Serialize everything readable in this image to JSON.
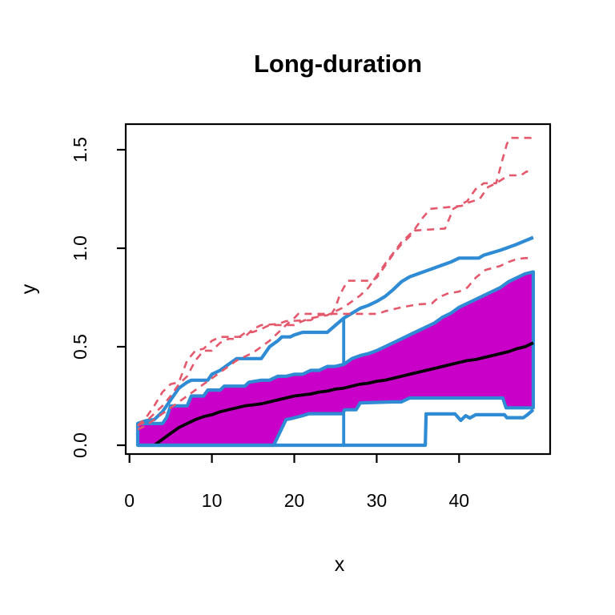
{
  "chart_data": {
    "type": "line",
    "title": "Long-duration",
    "xlabel": "x",
    "ylabel": "y",
    "x_ticks": [
      0,
      10,
      20,
      30,
      40
    ],
    "x_tick_labels": [
      "0",
      "10",
      "20",
      "30",
      "40"
    ],
    "y_ticks": [
      0,
      0.5,
      1.0,
      1.5
    ],
    "y_tick_labels": [
      "0.0",
      "0.5",
      "1.0",
      "1.5"
    ],
    "xlim": [
      -1,
      51
    ],
    "ylim": [
      -0.05,
      1.64
    ],
    "grid": false,
    "legend_position": "none",
    "plot_kind": "functional-boxplot",
    "colors": {
      "median": "#000000",
      "central_region_fill": "#C800C8",
      "envelope": "#2E8BD4",
      "outliers": "#E4586C",
      "box": "#000000"
    },
    "series": [
      {
        "name": "central-region-upper",
        "role": "band-upper",
        "color": "#2E8BD4",
        "style": "solid",
        "points": [
          [
            1,
            0.11
          ],
          [
            4,
            0.11
          ],
          [
            4.5,
            0.14
          ],
          [
            5,
            0.2
          ],
          [
            7,
            0.2
          ],
          [
            7.5,
            0.25
          ],
          [
            9,
            0.25
          ],
          [
            9.5,
            0.28
          ],
          [
            11,
            0.28
          ],
          [
            11.5,
            0.3
          ],
          [
            14,
            0.3
          ],
          [
            14.5,
            0.32
          ],
          [
            16,
            0.33
          ],
          [
            17,
            0.33
          ],
          [
            18,
            0.35
          ],
          [
            19,
            0.35
          ],
          [
            20,
            0.36
          ],
          [
            21,
            0.36
          ],
          [
            22,
            0.38
          ],
          [
            23,
            0.38
          ],
          [
            24,
            0.4
          ],
          [
            25,
            0.4
          ],
          [
            26,
            0.41
          ],
          [
            27,
            0.44
          ],
          [
            28,
            0.455
          ],
          [
            29,
            0.465
          ],
          [
            30,
            0.48
          ],
          [
            31,
            0.5
          ],
          [
            32,
            0.52
          ],
          [
            33,
            0.54
          ],
          [
            34,
            0.56
          ],
          [
            35,
            0.58
          ],
          [
            36,
            0.6
          ],
          [
            37,
            0.62
          ],
          [
            38,
            0.65
          ],
          [
            39,
            0.67
          ],
          [
            40,
            0.7
          ],
          [
            41,
            0.72
          ],
          [
            42,
            0.74
          ],
          [
            43,
            0.76
          ],
          [
            44,
            0.78
          ],
          [
            45,
            0.8
          ],
          [
            46,
            0.83
          ],
          [
            47,
            0.85
          ],
          [
            48,
            0.87
          ],
          [
            49,
            0.88
          ]
        ]
      },
      {
        "name": "central-region-lower",
        "role": "band-lower",
        "color": "#2E8BD4",
        "style": "solid",
        "points": [
          [
            1,
            0.0
          ],
          [
            17.5,
            0.0
          ],
          [
            19,
            0.13
          ],
          [
            19.5,
            0.134
          ],
          [
            21,
            0.15
          ],
          [
            21.8,
            0.16
          ],
          [
            25.9,
            0.16
          ],
          [
            26.1,
            0.18
          ],
          [
            27.5,
            0.18
          ],
          [
            28,
            0.215
          ],
          [
            32,
            0.22
          ],
          [
            33,
            0.22
          ],
          [
            34,
            0.24
          ],
          [
            45.3,
            0.24
          ],
          [
            45.7,
            0.19
          ],
          [
            49,
            0.19
          ]
        ]
      },
      {
        "name": "median",
        "role": "median",
        "color": "#000000",
        "style": "solid",
        "points": [
          [
            1,
            0.0
          ],
          [
            3,
            0.0
          ],
          [
            4,
            0.03
          ],
          [
            5,
            0.06
          ],
          [
            6,
            0.09
          ],
          [
            7,
            0.11
          ],
          [
            8,
            0.13
          ],
          [
            9,
            0.145
          ],
          [
            10,
            0.155
          ],
          [
            11,
            0.17
          ],
          [
            12,
            0.18
          ],
          [
            13,
            0.19
          ],
          [
            14,
            0.2
          ],
          [
            15,
            0.205
          ],
          [
            16,
            0.21
          ],
          [
            17,
            0.22
          ],
          [
            18,
            0.23
          ],
          [
            19,
            0.24
          ],
          [
            20,
            0.25
          ],
          [
            21,
            0.255
          ],
          [
            22,
            0.26
          ],
          [
            23,
            0.27
          ],
          [
            24,
            0.275
          ],
          [
            25,
            0.285
          ],
          [
            26,
            0.29
          ],
          [
            27,
            0.3
          ],
          [
            28,
            0.31
          ],
          [
            29,
            0.315
          ],
          [
            30,
            0.325
          ],
          [
            31,
            0.33
          ],
          [
            32,
            0.34
          ],
          [
            33,
            0.35
          ],
          [
            34,
            0.36
          ],
          [
            35,
            0.37
          ],
          [
            36,
            0.38
          ],
          [
            37,
            0.39
          ],
          [
            38,
            0.4
          ],
          [
            39,
            0.41
          ],
          [
            40,
            0.42
          ],
          [
            41,
            0.43
          ],
          [
            42,
            0.435
          ],
          [
            43,
            0.445
          ],
          [
            44,
            0.455
          ],
          [
            45,
            0.465
          ],
          [
            46,
            0.475
          ],
          [
            47,
            0.49
          ],
          [
            48,
            0.5
          ],
          [
            49,
            0.52
          ]
        ]
      },
      {
        "name": "envelope-max",
        "role": "envelope",
        "color": "#2E8BD4",
        "style": "solid",
        "points": [
          [
            1,
            0.11
          ],
          [
            2,
            0.125
          ],
          [
            3,
            0.13
          ],
          [
            4,
            0.17
          ],
          [
            5,
            0.23
          ],
          [
            6,
            0.29
          ],
          [
            7,
            0.32
          ],
          [
            7.5,
            0.33
          ],
          [
            9.5,
            0.33
          ],
          [
            10,
            0.36
          ],
          [
            11,
            0.38
          ],
          [
            12,
            0.41
          ],
          [
            13,
            0.44
          ],
          [
            16,
            0.44
          ],
          [
            17,
            0.5
          ],
          [
            18,
            0.53
          ],
          [
            18.5,
            0.55
          ],
          [
            19.5,
            0.55
          ],
          [
            20,
            0.56
          ],
          [
            21,
            0.573
          ],
          [
            24,
            0.573
          ],
          [
            26,
            0.645
          ],
          [
            27,
            0.67
          ],
          [
            28,
            0.695
          ],
          [
            29,
            0.71
          ],
          [
            30,
            0.73
          ],
          [
            31,
            0.755
          ],
          [
            32,
            0.79
          ],
          [
            33,
            0.83
          ],
          [
            34,
            0.855
          ],
          [
            35,
            0.87
          ],
          [
            36,
            0.885
          ],
          [
            37,
            0.9
          ],
          [
            38,
            0.915
          ],
          [
            39,
            0.93
          ],
          [
            40,
            0.95
          ],
          [
            42.4,
            0.95
          ],
          [
            43,
            0.965
          ],
          [
            45,
            0.99
          ],
          [
            47,
            1.02
          ],
          [
            49,
            1.055
          ]
        ]
      },
      {
        "name": "envelope-min",
        "role": "envelope",
        "color": "#2E8BD4",
        "style": "solid",
        "points": [
          [
            1,
            0.0
          ],
          [
            35.9,
            0.0
          ],
          [
            36,
            0.159
          ],
          [
            39.5,
            0.159
          ],
          [
            40.2,
            0.126
          ],
          [
            40.8,
            0.15
          ],
          [
            41.3,
            0.138
          ],
          [
            42,
            0.155
          ],
          [
            45.5,
            0.155
          ],
          [
            45.8,
            0.14
          ],
          [
            47.8,
            0.14
          ],
          [
            48.3,
            0.155
          ],
          [
            49,
            0.18
          ]
        ]
      },
      {
        "name": "whisker-bar",
        "role": "vline",
        "color": "#2E8BD4",
        "style": "solid",
        "points": [
          [
            26,
            0.0
          ],
          [
            26,
            0.645
          ]
        ]
      },
      {
        "name": "outlier-1",
        "role": "outlier",
        "color": "#E4586C",
        "style": "dashed",
        "points": [
          [
            1,
            0.1
          ],
          [
            2,
            0.14
          ],
          [
            3,
            0.2
          ],
          [
            4,
            0.27
          ],
          [
            5,
            0.31
          ],
          [
            6,
            0.32
          ],
          [
            7,
            0.43
          ],
          [
            8,
            0.48
          ],
          [
            9,
            0.49
          ],
          [
            10,
            0.53
          ],
          [
            11,
            0.55
          ],
          [
            14,
            0.55
          ],
          [
            15,
            0.59
          ],
          [
            16,
            0.61
          ],
          [
            18,
            0.615
          ],
          [
            19,
            0.63
          ],
          [
            22,
            0.635
          ],
          [
            23,
            0.66
          ],
          [
            24.5,
            0.665
          ],
          [
            25,
            0.7
          ],
          [
            25.5,
            0.76
          ],
          [
            26,
            0.8
          ],
          [
            26.5,
            0.835
          ],
          [
            29.4,
            0.835
          ],
          [
            30,
            0.85
          ],
          [
            31,
            0.91
          ],
          [
            32,
            0.97
          ],
          [
            33,
            1.02
          ],
          [
            34,
            1.06
          ],
          [
            34.6,
            1.09
          ],
          [
            38.3,
            1.1
          ],
          [
            38.8,
            1.15
          ],
          [
            39.3,
            1.2
          ],
          [
            41,
            1.24
          ],
          [
            42,
            1.3
          ],
          [
            43,
            1.33
          ],
          [
            44.5,
            1.33
          ],
          [
            45.2,
            1.44
          ],
          [
            45.8,
            1.53
          ],
          [
            46.3,
            1.56
          ],
          [
            48.7,
            1.56
          ],
          [
            49,
            1.57
          ]
        ]
      },
      {
        "name": "outlier-2",
        "role": "outlier",
        "color": "#E4586C",
        "style": "dashed",
        "points": [
          [
            1,
            0.1
          ],
          [
            2,
            0.12
          ],
          [
            3,
            0.16
          ],
          [
            4,
            0.2
          ],
          [
            5,
            0.25
          ],
          [
            6,
            0.31
          ],
          [
            7,
            0.35
          ],
          [
            8,
            0.43
          ],
          [
            9,
            0.48
          ],
          [
            10,
            0.48
          ],
          [
            11,
            0.52
          ],
          [
            12,
            0.54
          ],
          [
            13,
            0.54
          ],
          [
            14,
            0.57
          ],
          [
            15,
            0.575
          ],
          [
            16,
            0.59
          ],
          [
            17,
            0.61
          ],
          [
            20,
            0.61
          ],
          [
            21,
            0.63
          ],
          [
            22,
            0.645
          ],
          [
            24,
            0.66
          ],
          [
            25,
            0.68
          ],
          [
            26,
            0.7
          ],
          [
            27,
            0.73
          ],
          [
            28,
            0.76
          ],
          [
            29,
            0.8
          ],
          [
            30,
            0.86
          ],
          [
            31,
            0.92
          ],
          [
            32,
            0.975
          ],
          [
            33,
            1.03
          ],
          [
            34.5,
            1.09
          ],
          [
            35.5,
            1.15
          ],
          [
            36.5,
            1.2
          ],
          [
            40.3,
            1.215
          ],
          [
            41,
            1.23
          ],
          [
            42.5,
            1.25
          ],
          [
            43.5,
            1.31
          ],
          [
            44.5,
            1.33
          ],
          [
            46,
            1.37
          ],
          [
            47.5,
            1.37
          ],
          [
            48.2,
            1.39
          ],
          [
            49,
            1.38
          ]
        ]
      },
      {
        "name": "outlier-3",
        "role": "outlier",
        "color": "#E4586C",
        "style": "dashed",
        "points": [
          [
            1,
            0.08
          ],
          [
            2,
            0.1
          ],
          [
            3,
            0.13
          ],
          [
            4,
            0.16
          ],
          [
            5,
            0.19
          ],
          [
            6,
            0.22
          ],
          [
            7,
            0.25
          ],
          [
            8,
            0.28
          ],
          [
            9,
            0.31
          ],
          [
            10,
            0.34
          ],
          [
            11,
            0.37
          ],
          [
            12,
            0.4
          ],
          [
            13,
            0.43
          ],
          [
            14,
            0.45
          ],
          [
            15,
            0.47
          ],
          [
            16,
            0.5
          ],
          [
            17,
            0.53
          ],
          [
            18,
            0.57
          ],
          [
            19,
            0.61
          ],
          [
            20,
            0.645
          ],
          [
            20.5,
            0.667
          ],
          [
            30.2,
            0.667
          ],
          [
            31,
            0.68
          ],
          [
            33,
            0.7
          ],
          [
            35,
            0.715
          ],
          [
            36.7,
            0.72
          ],
          [
            37.5,
            0.75
          ],
          [
            38.6,
            0.77
          ],
          [
            40,
            0.78
          ],
          [
            41,
            0.8
          ],
          [
            42,
            0.85
          ],
          [
            43.2,
            0.89
          ],
          [
            45,
            0.91
          ],
          [
            46,
            0.93
          ],
          [
            47,
            0.945
          ],
          [
            48,
            0.95
          ],
          [
            49,
            0.95
          ]
        ]
      }
    ]
  }
}
